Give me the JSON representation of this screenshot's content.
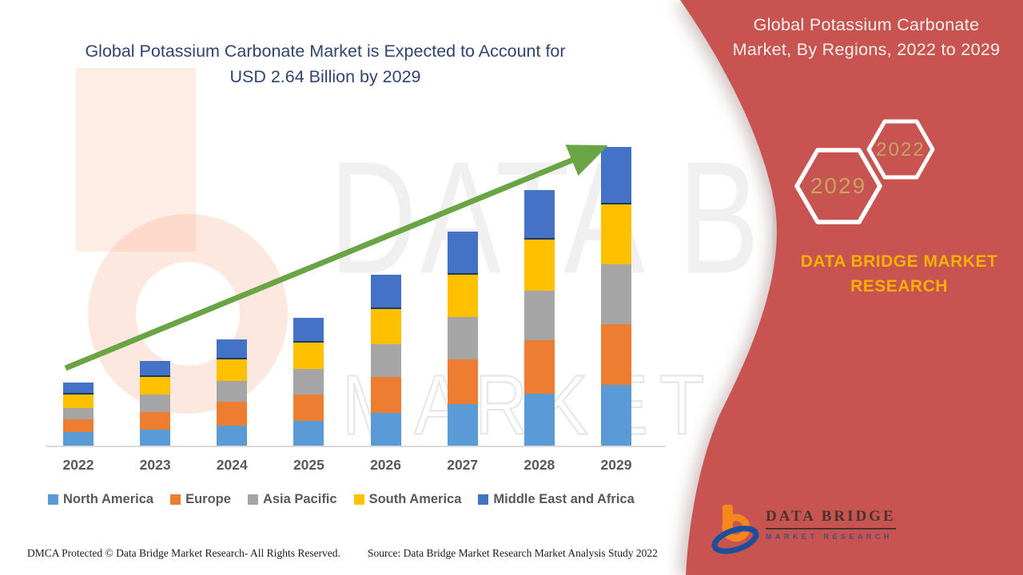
{
  "page": {
    "background": "#ffffff",
    "panel_red": "#C75450",
    "hex_stroke": "#FFFFFF",
    "hex_label_color": "#C9A361"
  },
  "main_title": {
    "line1": "Global Potassium Carbonate Market is Expected to Account for",
    "line2": "USD 2.64 Billion by 2029",
    "color": "#2F4570"
  },
  "right_panel": {
    "title_line1": "Global Potassium Carbonate",
    "title_line2": "Market, By Regions, 2022 to 2029",
    "hexagon_large_label": "2029",
    "hexagon_small_label": "2022",
    "brand_line1": "DATA BRIDGE MARKET",
    "brand_line2": "RESEARCH",
    "brand_color": "#F5B000",
    "logo_wordmark": "DATA BRIDGE",
    "logo_subtitle": "MARKET RESEARCH"
  },
  "watermark": {
    "line1": "DATA BRIDGE",
    "line2": "MARKET RESEARCH"
  },
  "footer": {
    "left": "DMCA Protected © Data Bridge Market Research- All Rights Reserved.",
    "right": "Source: Data Bridge Market Research Market Analysis Study 2022"
  },
  "chart_data": {
    "type": "bar",
    "stacked": true,
    "title": "Global Potassium Carbonate Market is Expected to Account for USD 2.64 Billion by 2029",
    "unit": "USD Billion",
    "categories": [
      "2022",
      "2023",
      "2024",
      "2025",
      "2026",
      "2027",
      "2028",
      "2029"
    ],
    "series": [
      {
        "name": "North America",
        "color": "#5B9BD5",
        "values": [
          0.12,
          0.14,
          0.18,
          0.22,
          0.29,
          0.37,
          0.46,
          0.54
        ]
      },
      {
        "name": "Europe",
        "color": "#ED7D31",
        "values": [
          0.11,
          0.16,
          0.21,
          0.23,
          0.32,
          0.39,
          0.47,
          0.53
        ]
      },
      {
        "name": "Asia Pacific",
        "color": "#A5A5A5",
        "values": [
          0.1,
          0.15,
          0.18,
          0.23,
          0.29,
          0.38,
          0.44,
          0.53
        ]
      },
      {
        "name": "South America",
        "color": "#FFC000",
        "values": [
          0.12,
          0.16,
          0.19,
          0.23,
          0.31,
          0.37,
          0.45,
          0.53
        ]
      },
      {
        "name": "Middle East and Africa",
        "color": "#4472C4",
        "values": [
          0.11,
          0.14,
          0.18,
          0.22,
          0.3,
          0.38,
          0.44,
          0.51
        ],
        "edge": "#203864"
      }
    ],
    "totals": [
      0.56,
      0.75,
      0.94,
      1.13,
      1.51,
      1.89,
      2.26,
      2.64
    ],
    "ylim": [
      0,
      2.8
    ],
    "grid": false,
    "legend_position": "bottom",
    "trend_arrow": {
      "color": "#69A544",
      "direction": "up-right"
    },
    "axis_color": "#D9D9D9",
    "label_color": "#595959"
  }
}
